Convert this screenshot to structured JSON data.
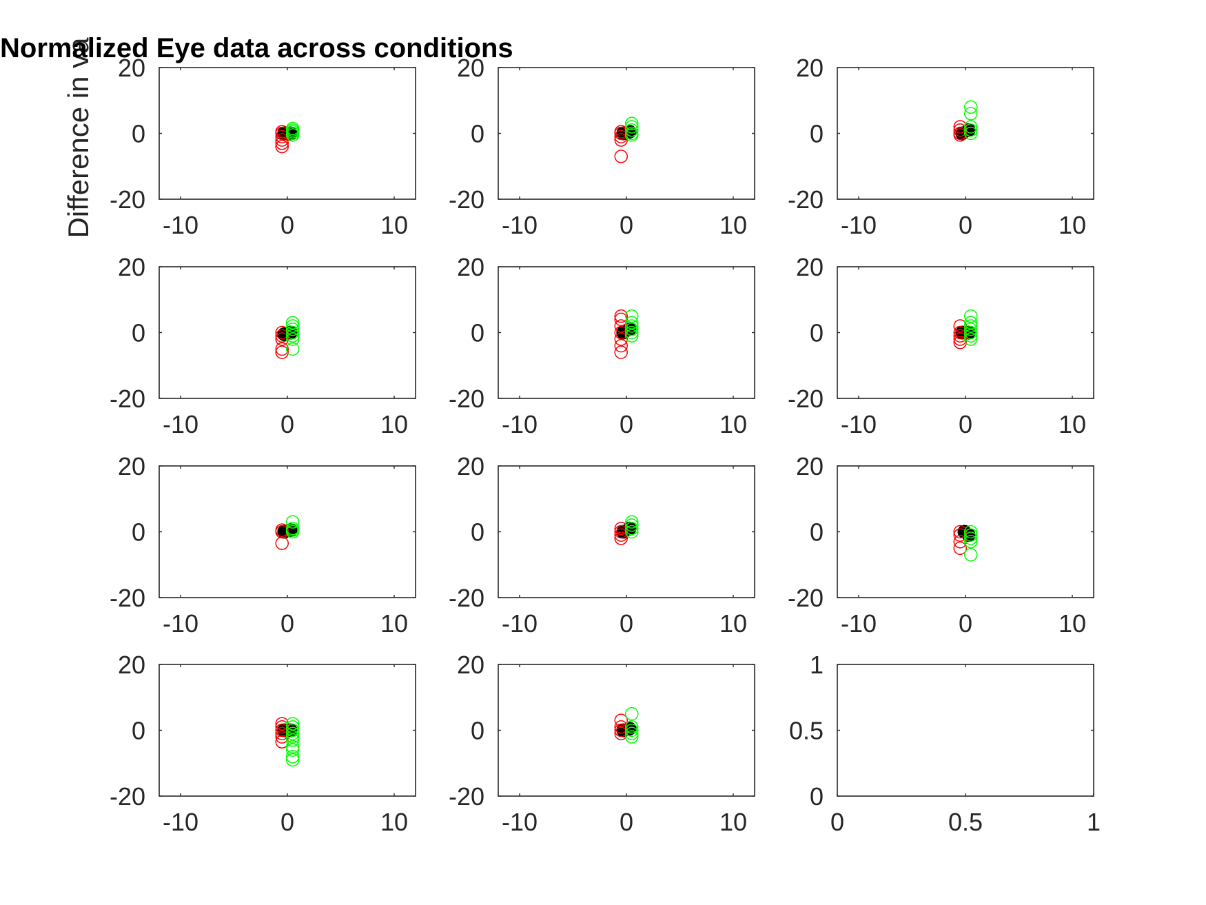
{
  "figure": {
    "title": "Normalized Eye data across conditions",
    "ylabel": "Difference in va"
  },
  "colors": {
    "red_series": "#ff0000",
    "green_series": "#00ff00",
    "mean_marker": "#000000",
    "axes": "#262626"
  },
  "chart_data": [
    {
      "type": "scatter",
      "grid": false,
      "xlim": [
        -12,
        12
      ],
      "ylim": [
        -20,
        20
      ],
      "xticks": [
        "-10",
        "0",
        "10"
      ],
      "yticks": [
        "-20",
        "0",
        "20"
      ],
      "series": [
        {
          "color": "#ff0000",
          "points": [
            [
              -0.5,
              0
            ],
            [
              -0.5,
              -1
            ],
            [
              -0.5,
              -2
            ],
            [
              -0.5,
              -3
            ],
            [
              -0.5,
              -4
            ],
            [
              -0.5,
              0.5
            ]
          ]
        },
        {
          "color": "#00ff00",
          "points": [
            [
              0.5,
              1
            ],
            [
              0.5,
              0
            ],
            [
              0.5,
              -0.5
            ],
            [
              0.5,
              1.5
            ],
            [
              0.5,
              0.5
            ]
          ]
        }
      ],
      "means": [
        [
          -0.3,
          0
        ],
        [
          0.3,
          0
        ]
      ]
    },
    {
      "type": "scatter",
      "grid": false,
      "xlim": [
        -12,
        12
      ],
      "ylim": [
        -20,
        20
      ],
      "xticks": [
        "-10",
        "0",
        "10"
      ],
      "yticks": [
        "-20",
        "0",
        "20"
      ],
      "series": [
        {
          "color": "#ff0000",
          "points": [
            [
              -0.5,
              0
            ],
            [
              -0.5,
              -1
            ],
            [
              -0.5,
              -2
            ],
            [
              -0.5,
              -7
            ],
            [
              -0.5,
              0.5
            ]
          ]
        },
        {
          "color": "#00ff00",
          "points": [
            [
              0.5,
              3
            ],
            [
              0.5,
              2
            ],
            [
              0.5,
              1
            ],
            [
              0.5,
              0
            ],
            [
              0.5,
              -0.5
            ]
          ]
        }
      ],
      "means": [
        [
          -0.3,
          0
        ],
        [
          0.3,
          0.5
        ]
      ]
    },
    {
      "type": "scatter",
      "grid": false,
      "xlim": [
        -12,
        12
      ],
      "ylim": [
        -20,
        20
      ],
      "xticks": [
        "-10",
        "0",
        "10"
      ],
      "yticks": [
        "-20",
        "0",
        "20"
      ],
      "series": [
        {
          "color": "#ff0000",
          "points": [
            [
              -0.5,
              0
            ],
            [
              -0.5,
              1
            ],
            [
              -0.5,
              2
            ],
            [
              -0.5,
              -0.5
            ]
          ]
        },
        {
          "color": "#00ff00",
          "points": [
            [
              0.5,
              8
            ],
            [
              0.5,
              6
            ],
            [
              0.5,
              2
            ],
            [
              0.5,
              1
            ],
            [
              0.5,
              0
            ]
          ]
        }
      ],
      "means": [
        [
          -0.3,
          0
        ],
        [
          0.3,
          1
        ]
      ]
    },
    {
      "type": "scatter",
      "grid": false,
      "xlim": [
        -12,
        12
      ],
      "ylim": [
        -20,
        20
      ],
      "xticks": [
        "-10",
        "0",
        "10"
      ],
      "yticks": [
        "-20",
        "0",
        "20"
      ],
      "series": [
        {
          "color": "#ff0000",
          "points": [
            [
              -0.5,
              0
            ],
            [
              -0.5,
              -1
            ],
            [
              -0.5,
              -2
            ],
            [
              -0.5,
              -5
            ],
            [
              -0.5,
              -6
            ]
          ]
        },
        {
          "color": "#00ff00",
          "points": [
            [
              0.5,
              3
            ],
            [
              0.5,
              2
            ],
            [
              0.5,
              1
            ],
            [
              0.5,
              0
            ],
            [
              0.5,
              -1
            ],
            [
              0.5,
              -2
            ],
            [
              0.5,
              -5
            ]
          ]
        }
      ],
      "means": [
        [
          -0.3,
          -0.5
        ],
        [
          0.3,
          0
        ]
      ]
    },
    {
      "type": "scatter",
      "grid": false,
      "xlim": [
        -12,
        12
      ],
      "ylim": [
        -20,
        20
      ],
      "xticks": [
        "-10",
        "0",
        "10"
      ],
      "yticks": [
        "-20",
        "0",
        "20"
      ],
      "series": [
        {
          "color": "#ff0000",
          "points": [
            [
              -0.5,
              5
            ],
            [
              -0.5,
              4
            ],
            [
              -0.5,
              2
            ],
            [
              -0.5,
              0
            ],
            [
              -0.5,
              -2
            ],
            [
              -0.5,
              -4
            ],
            [
              -0.5,
              -6
            ]
          ]
        },
        {
          "color": "#00ff00",
          "points": [
            [
              0.5,
              5
            ],
            [
              0.5,
              3
            ],
            [
              0.5,
              2
            ],
            [
              0.5,
              1
            ],
            [
              0.5,
              0
            ],
            [
              0.5,
              -1
            ]
          ]
        }
      ],
      "means": [
        [
          -0.3,
          0
        ],
        [
          0.3,
          1
        ]
      ]
    },
    {
      "type": "scatter",
      "grid": false,
      "xlim": [
        -12,
        12
      ],
      "ylim": [
        -20,
        20
      ],
      "xticks": [
        "-10",
        "0",
        "10"
      ],
      "yticks": [
        "-20",
        "0",
        "20"
      ],
      "series": [
        {
          "color": "#ff0000",
          "points": [
            [
              -0.5,
              2
            ],
            [
              -0.5,
              0
            ],
            [
              -0.5,
              -1
            ],
            [
              -0.5,
              -2
            ],
            [
              -0.5,
              -3
            ]
          ]
        },
        {
          "color": "#00ff00",
          "points": [
            [
              0.5,
              5
            ],
            [
              0.5,
              3
            ],
            [
              0.5,
              2
            ],
            [
              0.5,
              1
            ],
            [
              0.5,
              0
            ],
            [
              0.5,
              -1
            ],
            [
              0.5,
              -2
            ]
          ]
        }
      ],
      "means": [
        [
          -0.3,
          0
        ],
        [
          0.3,
          0
        ]
      ]
    },
    {
      "type": "scatter",
      "grid": false,
      "xlim": [
        -12,
        12
      ],
      "ylim": [
        -20,
        20
      ],
      "xticks": [
        "-10",
        "0",
        "10"
      ],
      "yticks": [
        "-20",
        "0",
        "20"
      ],
      "series": [
        {
          "color": "#ff0000",
          "points": [
            [
              -0.5,
              0
            ],
            [
              -0.5,
              0.5
            ],
            [
              -0.5,
              -3.5
            ]
          ]
        },
        {
          "color": "#00ff00",
          "points": [
            [
              0.5,
              3
            ],
            [
              0.5,
              1
            ],
            [
              0.5,
              0
            ],
            [
              0.5,
              0.5
            ]
          ]
        }
      ],
      "means": [
        [
          -0.3,
          0
        ],
        [
          0.3,
          0.5
        ]
      ]
    },
    {
      "type": "scatter",
      "grid": false,
      "xlim": [
        -12,
        12
      ],
      "ylim": [
        -20,
        20
      ],
      "xticks": [
        "-10",
        "0",
        "10"
      ],
      "yticks": [
        "-20",
        "0",
        "20"
      ],
      "series": [
        {
          "color": "#ff0000",
          "points": [
            [
              -0.5,
              1
            ],
            [
              -0.5,
              0
            ],
            [
              -0.5,
              -1
            ],
            [
              -0.5,
              -2
            ]
          ]
        },
        {
          "color": "#00ff00",
          "points": [
            [
              0.5,
              3
            ],
            [
              0.5,
              2
            ],
            [
              0.5,
              1
            ],
            [
              0.5,
              0
            ]
          ]
        }
      ],
      "means": [
        [
          -0.3,
          0
        ],
        [
          0.3,
          1
        ]
      ]
    },
    {
      "type": "scatter",
      "grid": false,
      "xlim": [
        -12,
        12
      ],
      "ylim": [
        -20,
        20
      ],
      "xticks": [
        "-10",
        "0",
        "10"
      ],
      "yticks": [
        "-20",
        "0",
        "20"
      ],
      "series": [
        {
          "color": "#ff0000",
          "points": [
            [
              -0.5,
              0
            ],
            [
              -0.5,
              -1
            ],
            [
              -0.5,
              -3
            ],
            [
              -0.5,
              -5
            ]
          ]
        },
        {
          "color": "#00ff00",
          "points": [
            [
              0.5,
              0
            ],
            [
              0.5,
              -1
            ],
            [
              0.5,
              -2
            ],
            [
              0.5,
              -3
            ],
            [
              0.5,
              -7
            ]
          ]
        }
      ],
      "means": [
        [
          -0.1,
          0
        ],
        [
          0.3,
          -1
        ]
      ]
    },
    {
      "type": "scatter",
      "grid": false,
      "xlim": [
        -12,
        12
      ],
      "ylim": [
        -20,
        20
      ],
      "xticks": [
        "-10",
        "0",
        "10"
      ],
      "yticks": [
        "-20",
        "0",
        "20"
      ],
      "series": [
        {
          "color": "#ff0000",
          "points": [
            [
              -0.5,
              2
            ],
            [
              -0.5,
              1
            ],
            [
              -0.5,
              0
            ],
            [
              -0.5,
              -1
            ],
            [
              -0.5,
              -2
            ],
            [
              -0.5,
              -3.5
            ]
          ]
        },
        {
          "color": "#00ff00",
          "points": [
            [
              0.5,
              2
            ],
            [
              0.5,
              1
            ],
            [
              0.5,
              0
            ],
            [
              0.5,
              -1
            ],
            [
              0.5,
              -2
            ],
            [
              0.5,
              -3
            ],
            [
              0.5,
              -5
            ],
            [
              0.5,
              -6
            ],
            [
              0.5,
              -8
            ],
            [
              0.5,
              -9
            ]
          ]
        }
      ],
      "means": [
        [
          -0.3,
          0
        ],
        [
          0.3,
          0
        ]
      ]
    },
    {
      "type": "scatter",
      "grid": false,
      "xlim": [
        -12,
        12
      ],
      "ylim": [
        -20,
        20
      ],
      "xticks": [
        "-10",
        "0",
        "10"
      ],
      "yticks": [
        "-20",
        "0",
        "20"
      ],
      "series": [
        {
          "color": "#ff0000",
          "points": [
            [
              -0.5,
              3
            ],
            [
              -0.5,
              1
            ],
            [
              -0.5,
              0
            ],
            [
              -0.5,
              -1
            ]
          ]
        },
        {
          "color": "#00ff00",
          "points": [
            [
              0.5,
              5
            ],
            [
              0.5,
              1
            ],
            [
              0.5,
              0
            ],
            [
              0.5,
              -1
            ],
            [
              0.5,
              -2
            ]
          ]
        }
      ],
      "means": [
        [
          -0.3,
          0
        ],
        [
          0.3,
          0.5
        ]
      ]
    },
    {
      "type": "scatter",
      "grid": false,
      "xlim": [
        0,
        1
      ],
      "ylim": [
        0,
        1
      ],
      "xticks": [
        "0",
        "0.5",
        "1"
      ],
      "yticks": [
        "0",
        "0.5",
        "1"
      ],
      "series": [],
      "means": []
    }
  ]
}
